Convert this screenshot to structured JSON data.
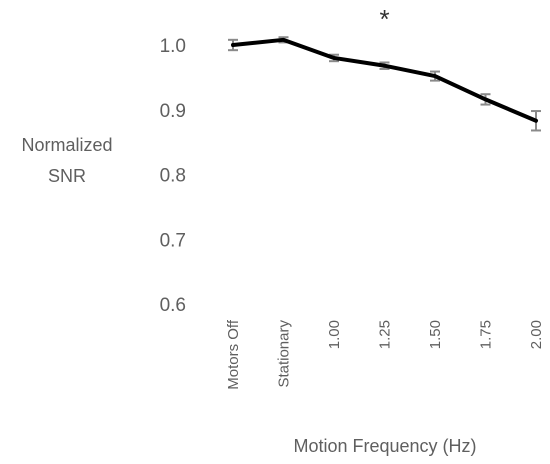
{
  "chart_data": {
    "type": "line",
    "title": "",
    "xlabel": "Motion Frequency  (Hz)",
    "ylabel_lines": [
      "Normalized",
      "SNR"
    ],
    "categories": [
      "Motors  Off",
      "Stationary",
      "1.00",
      "1.25",
      "1.50",
      "1.75",
      "2.00"
    ],
    "series": [
      {
        "values": [
          1.0,
          1.008,
          0.98,
          0.968,
          0.952,
          0.916,
          0.883
        ],
        "errors": [
          0.008,
          0.004,
          0.005,
          0.005,
          0.007,
          0.008,
          0.015
        ]
      }
    ],
    "ylim": [
      0.6,
      1.0
    ],
    "yticks": [
      "1.0",
      "0.9",
      "0.8",
      "0.7",
      "0.6"
    ],
    "grid": false,
    "legend": "none",
    "annotation": {
      "text": "*",
      "category": "1.25"
    },
    "colors": {
      "line": "#000000",
      "error_bar": "#8a8a8a",
      "text": "#5f5f5f"
    }
  }
}
